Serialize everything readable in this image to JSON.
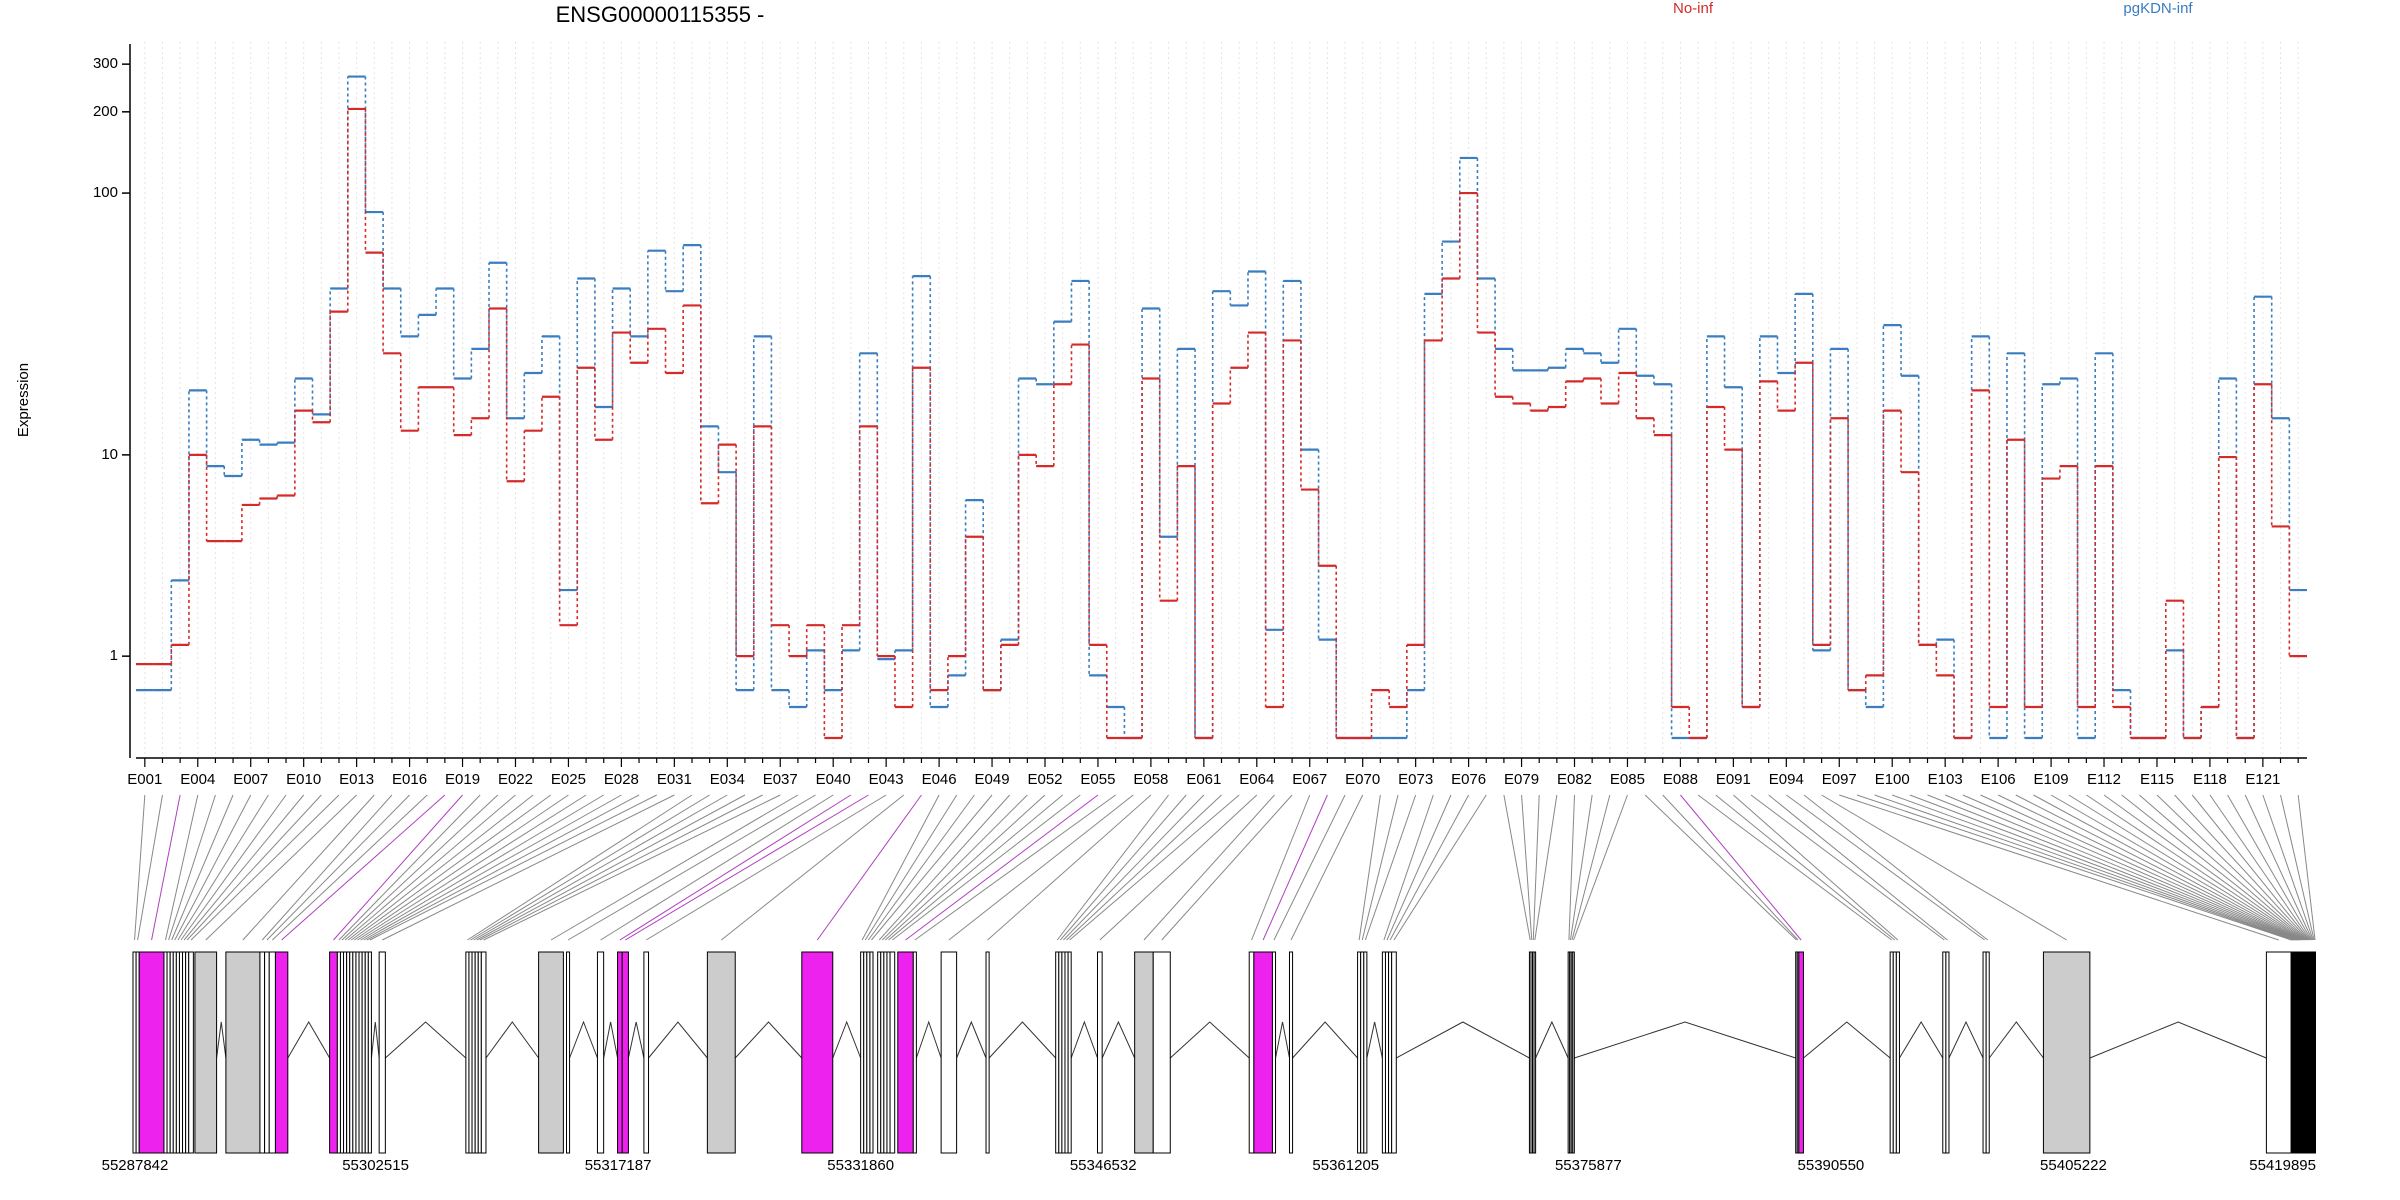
{
  "chart_data": {
    "type": "step",
    "title": "ENSG00000115355 -",
    "y_label": "Expression",
    "yscale": "log1p",
    "ylim": [
      0,
      350
    ],
    "yticks": [
      1,
      10,
      100,
      200,
      300
    ],
    "grid": true,
    "categories": [
      "E001",
      null,
      null,
      "E004",
      null,
      null,
      "E007",
      null,
      null,
      "E010",
      null,
      null,
      "E013",
      null,
      null,
      "E016",
      null,
      null,
      "E019",
      null,
      null,
      "E022",
      null,
      null,
      "E025",
      null,
      null,
      "E028",
      null,
      null,
      "E031",
      null,
      null,
      "E034",
      null,
      null,
      "E037",
      null,
      null,
      "E040",
      null,
      null,
      "E043",
      null,
      null,
      "E046",
      null,
      null,
      "E049",
      null,
      null,
      "E052",
      null,
      null,
      "E055",
      null,
      null,
      "E058",
      null,
      null,
      "E061",
      null,
      null,
      "E064",
      null,
      null,
      "E067",
      null,
      null,
      "E070",
      null,
      null,
      "E073",
      null,
      null,
      "E076",
      null,
      null,
      "E079",
      null,
      null,
      "E082",
      null,
      null,
      "E085",
      null,
      null,
      "E088",
      null,
      null,
      "E091",
      null,
      null,
      "E094",
      null,
      null,
      "E097",
      null,
      null,
      "E100",
      null,
      null,
      "E103",
      null,
      null,
      "E106",
      null,
      null,
      "E109",
      null,
      null,
      "E112",
      null,
      null,
      "E115",
      null,
      null,
      "E118",
      null,
      null,
      "E121",
      null,
      null
    ],
    "series": [
      {
        "name": "pgKDN-inf",
        "color": "#3a7dc0",
        "values": [
          0.5,
          0.5,
          2.8,
          18,
          9,
          8.2,
          11.5,
          11,
          11.2,
          20,
          14.5,
          44,
          270,
          85,
          44,
          29,
          35,
          44,
          20,
          26,
          55,
          14,
          21,
          29,
          2.5,
          48,
          15.5,
          44,
          29,
          61,
          43,
          64,
          13,
          8.5,
          0.5,
          29,
          0.5,
          0.3,
          1.1,
          0.5,
          1.1,
          25,
          0.95,
          1.1,
          49,
          0.3,
          0.7,
          6.5,
          0.5,
          1.3,
          20,
          19,
          33,
          47,
          0.7,
          0.3,
          0,
          37,
          4.5,
          26,
          0,
          43,
          38,
          51,
          1.5,
          47,
          10.5,
          1.3,
          0,
          0,
          0,
          0,
          0.5,
          42,
          66,
          135,
          48,
          26,
          21.5,
          21.5,
          22,
          26,
          25,
          23,
          31,
          20.5,
          19,
          0,
          0,
          29,
          18.5,
          0.3,
          29,
          21,
          42,
          1.1,
          26,
          0.5,
          0.3,
          32,
          20.5,
          1.2,
          1.3,
          0,
          29,
          0,
          25,
          0,
          19,
          20,
          0,
          25,
          0.5,
          0,
          0,
          1.1,
          0,
          0.3,
          20,
          0,
          41,
          14,
          2.5
        ]
      },
      {
        "name": "No-inf",
        "color": "#d42a2a",
        "values": [
          0.87,
          0.87,
          1.2,
          10,
          4.3,
          4.3,
          6.2,
          6.6,
          6.8,
          15,
          13.5,
          36,
          205,
          60,
          25,
          12.5,
          18.5,
          18.5,
          12,
          14,
          37,
          7.8,
          12.5,
          17,
          1.6,
          22,
          11.5,
          30,
          23,
          31,
          21,
          38,
          6.3,
          11,
          1,
          13,
          1.6,
          1,
          1.6,
          0,
          1.6,
          13,
          1,
          0.3,
          22,
          0.5,
          1,
          4.5,
          0.5,
          1.2,
          10,
          9,
          19,
          27,
          1.2,
          0,
          0,
          20,
          2.2,
          9,
          0,
          16,
          22,
          30,
          0.3,
          28,
          7.2,
          3.3,
          0,
          0,
          0.5,
          0.3,
          1.2,
          28,
          48,
          100,
          30,
          17,
          16,
          15,
          15.5,
          19.5,
          20,
          16,
          21,
          14,
          12,
          0.3,
          0,
          15.5,
          10.5,
          0.3,
          19.5,
          15,
          23,
          1.2,
          14,
          0.5,
          0.7,
          15,
          8.5,
          1.2,
          0.7,
          0,
          18,
          0.3,
          11.5,
          0.3,
          8,
          9,
          0.3,
          9,
          0.3,
          0,
          0,
          2.2,
          0,
          0.3,
          9.8,
          0,
          19,
          5,
          1
        ]
      }
    ],
    "gene_model": {
      "xlim": [
        55287842,
        55419895
      ],
      "xticks": [
        55287842,
        55302515,
        55317187,
        55331860,
        55346532,
        55361205,
        55375877,
        55390550,
        55405222,
        55419895
      ],
      "exon_starts": [
        55287842,
        55288029,
        55288217,
        55289715,
        55289902,
        55290090,
        55290277,
        55290464,
        55290652,
        55290839,
        55291026,
        55291213,
        55291588,
        55293461,
        55295521,
        55295802,
        55296083,
        55296458,
        55299736,
        55300204,
        55300391,
        55300578,
        55300766,
        55300953,
        55301140,
        55301328,
        55301515,
        55301702,
        55301890,
        55302077,
        55302732,
        55307977,
        55308164,
        55308351,
        55308539,
        55308726,
        55308913,
        55312378,
        55314064,
        55315937,
        55317154,
        55317435,
        55318747,
        55322586,
        55328299,
        55331858,
        55332045,
        55332232,
        55332419,
        55332888,
        55333075,
        55333262,
        55333450,
        55333637,
        55334105,
        55335042,
        55336727,
        55339443,
        55343657,
        55343845,
        55344032,
        55344219,
        55344407,
        55346186,
        55348434,
        55349557,
        55355364,
        55355645,
        55356768,
        55357799,
        55361919,
        55362106,
        55362294,
        55363418,
        55363606,
        55363793,
        55363980,
        55372314,
        55372408,
        55372501,
        55372595,
        55374656,
        55374749,
        55374843,
        55374936,
        55388422,
        55388516,
        55388609,
        55394135,
        55394322,
        55394509,
        55397319,
        55397506,
        55399754,
        55399941,
        55403406,
        55416894,
        55418392,
        55418449,
        55418506,
        55418563,
        55418620,
        55418677,
        55418734,
        55418791,
        55418848,
        55418905,
        55418962,
        55419019,
        55419076,
        55419133,
        55419190,
        55419247,
        55419304,
        55419361,
        55419418,
        55419475,
        55419532,
        55419589,
        55419646,
        55419703,
        55419760,
        55419817
      ],
      "exon_ends": [
        55288029,
        55288217,
        55289715,
        55289902,
        55290090,
        55290277,
        55290464,
        55290652,
        55290839,
        55291026,
        55291213,
        55291494,
        55292899,
        55295521,
        55295802,
        55296083,
        55296458,
        55297207,
        55300204,
        55300391,
        55300578,
        55300766,
        55300953,
        55301140,
        55301328,
        55301515,
        55301702,
        55301890,
        55302077,
        55302264,
        55303107,
        55308164,
        55308351,
        55308539,
        55308726,
        55308913,
        55309194,
        55313877,
        55314251,
        55316312,
        55317435,
        55317810,
        55319027,
        55324272,
        55330172,
        55332045,
        55332232,
        55332419,
        55332606,
        55333075,
        55333262,
        55333450,
        55333637,
        55333918,
        55335042,
        55335229,
        55337664,
        55339630,
        55343845,
        55344032,
        55344219,
        55344407,
        55344594,
        55346467,
        55349557,
        55350588,
        55355645,
        55356768,
        55356956,
        55357986,
        55362106,
        55362294,
        55362481,
        55363606,
        55363793,
        55363980,
        55364260,
        55372408,
        55372501,
        55372595,
        55372688,
        55374749,
        55374843,
        55374936,
        55375030,
        55388516,
        55388609,
        55388890,
        55394322,
        55394509,
        55394697,
        55397506,
        55397693,
        55399941,
        55400128,
        55406216,
        55418392,
        55418432,
        55418489,
        55418546,
        55418603,
        55418660,
        55418717,
        55418774,
        55418831,
        55418888,
        55418945,
        55419002,
        55419059,
        55419116,
        55419173,
        55419230,
        55419287,
        55419344,
        55419401,
        55419458,
        55419515,
        55419572,
        55419629,
        55419686,
        55419743,
        55419800,
        55419857
      ],
      "exon_colors": [
        "#ffffff",
        "#ffffff",
        "#ee22ee",
        "#ffffff",
        "#ffffff",
        "#ffffff",
        "#ffffff",
        "#ffffff",
        "#ffffff",
        "#ffffff",
        "#ffffff",
        "#ffffff",
        "#cccccc",
        "#cccccc",
        "#ffffff",
        "#ffffff",
        "#ffffff",
        "#ee22ee",
        "#ee22ee",
        "#ffffff",
        "#ffffff",
        "#ffffff",
        "#ffffff",
        "#ffffff",
        "#ffffff",
        "#ffffff",
        "#ffffff",
        "#ffffff",
        "#ffffff",
        "#ffffff",
        "#ffffff",
        "#ffffff",
        "#ffffff",
        "#ffffff",
        "#ffffff",
        "#ffffff",
        "#ffffff",
        "#cccccc",
        "#ffffff",
        "#ffffff",
        "#ee22ee",
        "#ee22ee",
        "#ffffff",
        "#cccccc",
        "#ee22ee",
        "#ffffff",
        "#ffffff",
        "#ffffff",
        "#ffffff",
        "#ffffff",
        "#ffffff",
        "#ffffff",
        "#ffffff",
        "#ffffff",
        "#ee22ee",
        "#ffffff",
        "#ffffff",
        "#ffffff",
        "#ffffff",
        "#ffffff",
        "#ffffff",
        "#ffffff",
        "#ffffff",
        "#ffffff",
        "#cccccc",
        "#ffffff",
        "#ffffff",
        "#ee22ee",
        "#ffffff",
        "#ffffff",
        "#ffffff",
        "#ffffff",
        "#ffffff",
        "#ffffff",
        "#ffffff",
        "#ffffff",
        "#ffffff",
        "#ffffff",
        "#ffffff",
        "#ffffff",
        "#ffffff",
        "#ffffff",
        "#ffffff",
        "#ffffff",
        "#ffffff",
        "#ffffff",
        "#ffffff",
        "#ee22ee",
        "#ffffff",
        "#ffffff",
        "#ffffff",
        "#ffffff",
        "#ffffff",
        "#ffffff",
        "#ffffff",
        "#cccccc",
        "#ffffff",
        "#ffffff",
        "#ffffff",
        "#ffffff",
        "#ffffff",
        "#ffffff",
        "#ffffff",
        "#ffffff",
        "#ffffff",
        "#ffffff",
        "#ffffff",
        "#ffffff",
        "#ffffff",
        "#ffffff",
        "#ffffff",
        "#ffffff",
        "#ffffff",
        "#ffffff",
        "#ffffff",
        "#ffffff",
        "#ffffff",
        "#ffffff",
        "#ffffff",
        "#ffffff",
        "#ffffff",
        "#ffffff",
        "#ffffff"
      ]
    }
  }
}
